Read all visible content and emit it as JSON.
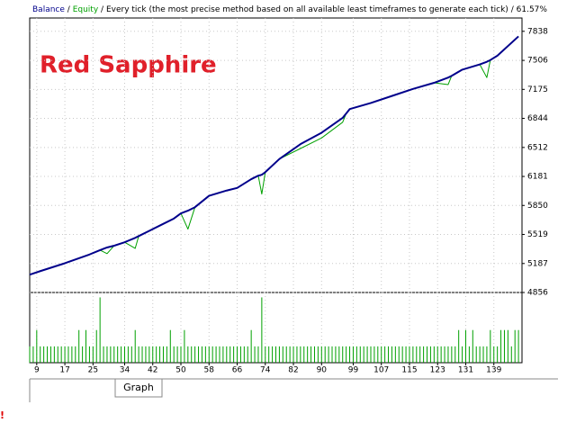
{
  "chart_data": {
    "type": "line",
    "annotation": "Red Sapphire",
    "model": "Every tick (the most precise method based on all available least timeframes to generate each tick)",
    "separator": "/",
    "result": "61.57%",
    "tab": "Graph",
    "marker": "!",
    "grid": true,
    "xlim": [
      7,
      147
    ],
    "xticks": [
      9,
      17,
      25,
      34,
      42,
      50,
      58,
      66,
      74,
      82,
      90,
      99,
      107,
      115,
      123,
      131,
      139
    ],
    "ylim": [
      4856,
      7990
    ],
    "yticks": [
      4856,
      5187,
      5519,
      5850,
      6181,
      6512,
      6844,
      7175,
      7506,
      7838
    ],
    "x": [
      7,
      10,
      17,
      24,
      27,
      29,
      31,
      34,
      37,
      38,
      41,
      45,
      48,
      50,
      52,
      54,
      58,
      63,
      66,
      70,
      72,
      73,
      74,
      78,
      84,
      90,
      96,
      97,
      98,
      104,
      110,
      116,
      122,
      126,
      127,
      130,
      135,
      137,
      138,
      140,
      146
    ],
    "series": [
      {
        "name": "Balance",
        "color": "#00008b",
        "values": [
          5060,
          5100,
          5190,
          5290,
          5340,
          5370,
          5390,
          5430,
          5480,
          5500,
          5560,
          5640,
          5700,
          5760,
          5790,
          5830,
          5960,
          6020,
          6050,
          6150,
          6190,
          6200,
          6230,
          6380,
          6550,
          6680,
          6850,
          6900,
          6950,
          7020,
          7100,
          7180,
          7250,
          7310,
          7330,
          7400,
          7460,
          7490,
          7510,
          7560,
          7780
        ]
      },
      {
        "name": "Equity",
        "color": "#00a000",
        "values": [
          5060,
          5100,
          5190,
          5290,
          5340,
          5300,
          5390,
          5430,
          5360,
          5500,
          5560,
          5640,
          5700,
          5760,
          5580,
          5830,
          5960,
          6020,
          6050,
          6150,
          6190,
          5980,
          6230,
          6380,
          6500,
          6620,
          6800,
          6900,
          6950,
          7020,
          7100,
          7180,
          7250,
          7230,
          7330,
          7400,
          7460,
          7310,
          7510,
          7560,
          7780
        ]
      }
    ],
    "volume": {
      "color": "#00a000",
      "ylim": [
        0,
        0.43
      ],
      "x": [
        7,
        8,
        9,
        10,
        11,
        12,
        13,
        14,
        15,
        16,
        17,
        18,
        19,
        20,
        21,
        22,
        23,
        24,
        25,
        26,
        27,
        28,
        29,
        30,
        31,
        32,
        33,
        34,
        35,
        36,
        37,
        38,
        39,
        40,
        41,
        42,
        43,
        44,
        45,
        46,
        47,
        48,
        49,
        50,
        51,
        52,
        53,
        54,
        55,
        56,
        57,
        58,
        59,
        60,
        61,
        62,
        63,
        64,
        65,
        66,
        67,
        68,
        69,
        70,
        71,
        72,
        73,
        74,
        75,
        76,
        77,
        78,
        79,
        80,
        81,
        82,
        83,
        84,
        85,
        86,
        87,
        88,
        89,
        90,
        91,
        92,
        93,
        94,
        95,
        96,
        97,
        98,
        99,
        100,
        101,
        102,
        103,
        104,
        105,
        106,
        107,
        108,
        109,
        110,
        111,
        112,
        113,
        114,
        115,
        116,
        117,
        118,
        119,
        120,
        121,
        122,
        123,
        124,
        125,
        126,
        127,
        128,
        129,
        130,
        131,
        132,
        133,
        134,
        135,
        136,
        137,
        138,
        139,
        140,
        141,
        142,
        143,
        144,
        145,
        146
      ],
      "values": [
        0.1,
        0.1,
        0.2,
        0.1,
        0.1,
        0.1,
        0.1,
        0.1,
        0.1,
        0.1,
        0.1,
        0.1,
        0.1,
        0.1,
        0.2,
        0.1,
        0.2,
        0.1,
        0.1,
        0.2,
        0.4,
        0.1,
        0.1,
        0.1,
        0.1,
        0.1,
        0.1,
        0.1,
        0.1,
        0.1,
        0.2,
        0.1,
        0.1,
        0.1,
        0.1,
        0.1,
        0.1,
        0.1,
        0.1,
        0.1,
        0.2,
        0.1,
        0.1,
        0.1,
        0.2,
        0.1,
        0.1,
        0.1,
        0.1,
        0.1,
        0.1,
        0.1,
        0.1,
        0.1,
        0.1,
        0.1,
        0.1,
        0.1,
        0.1,
        0.1,
        0.1,
        0.1,
        0.1,
        0.2,
        0.1,
        0.1,
        0.4,
        0.1,
        0.1,
        0.1,
        0.1,
        0.1,
        0.1,
        0.1,
        0.1,
        0.1,
        0.1,
        0.1,
        0.1,
        0.1,
        0.1,
        0.1,
        0.1,
        0.1,
        0.1,
        0.1,
        0.1,
        0.1,
        0.1,
        0.1,
        0.1,
        0.1,
        0.1,
        0.1,
        0.1,
        0.1,
        0.1,
        0.1,
        0.1,
        0.1,
        0.1,
        0.1,
        0.1,
        0.1,
        0.1,
        0.1,
        0.1,
        0.1,
        0.1,
        0.1,
        0.1,
        0.1,
        0.1,
        0.1,
        0.1,
        0.1,
        0.1,
        0.1,
        0.1,
        0.1,
        0.1,
        0.1,
        0.2,
        0.1,
        0.2,
        0.1,
        0.2,
        0.1,
        0.1,
        0.1,
        0.1,
        0.2,
        0.1,
        0.1,
        0.2,
        0.2,
        0.2,
        0.1,
        0.2,
        0.2
      ]
    }
  }
}
